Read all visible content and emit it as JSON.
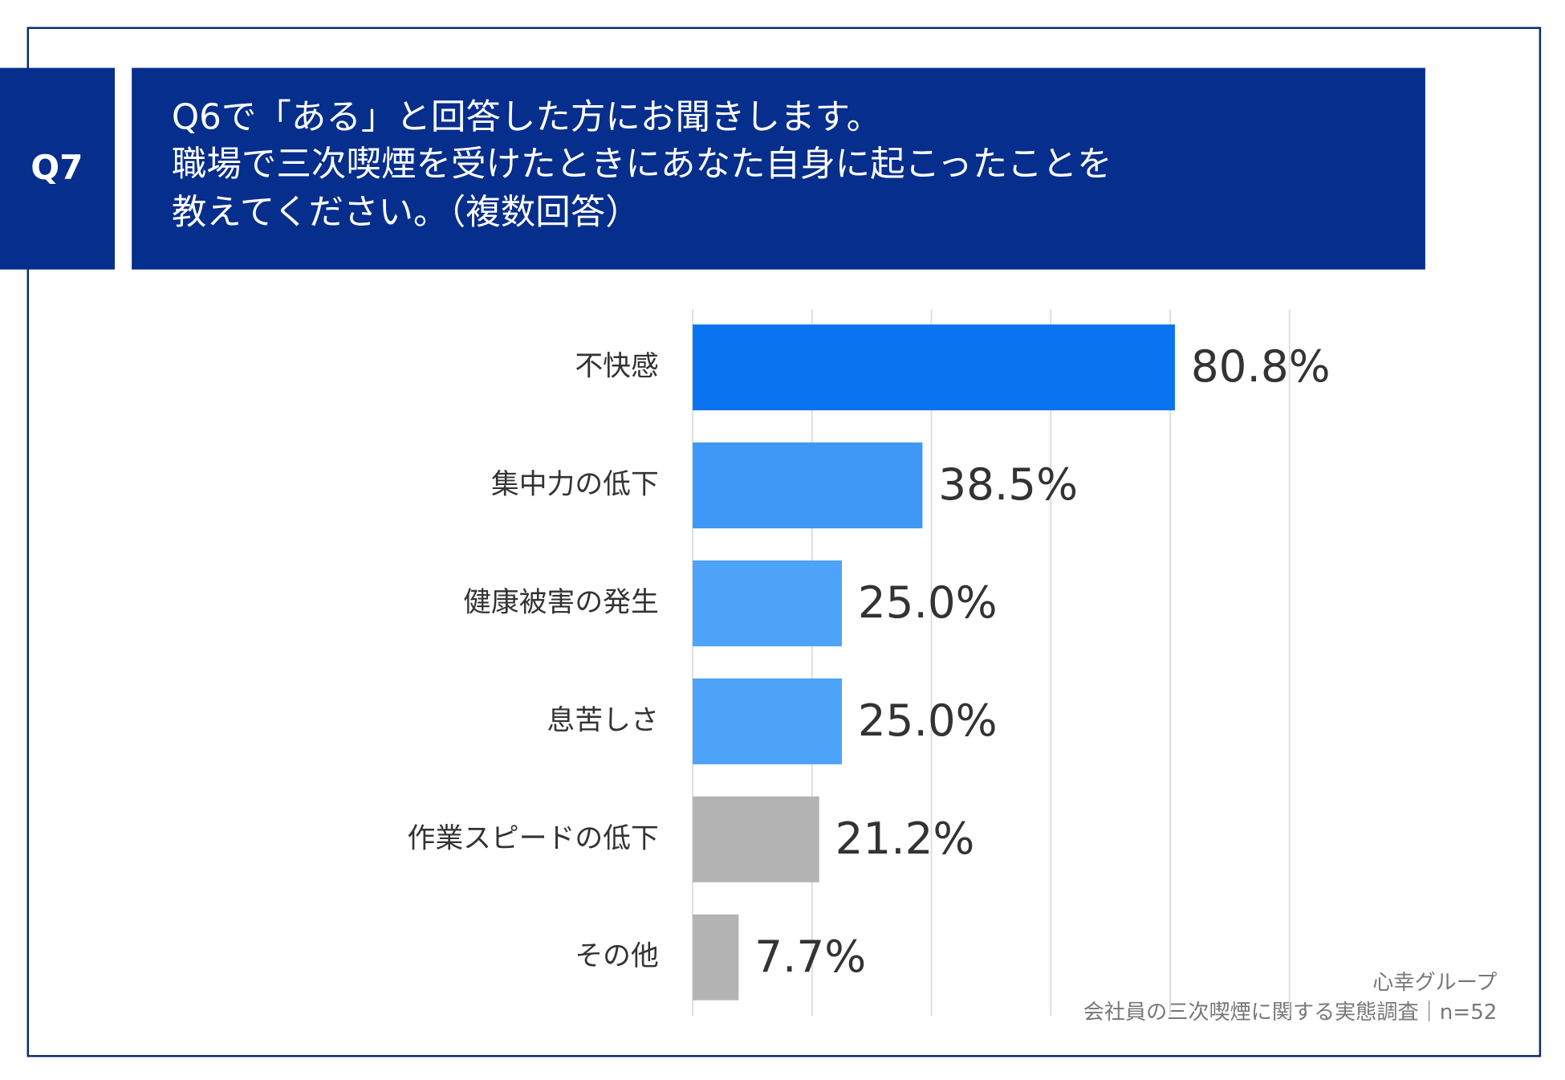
{
  "chart_data": {
    "type": "bar",
    "orientation": "horizontal",
    "question_label": "Q7",
    "title": [
      "Q6で「ある」と回答した方にお聞きします。",
      "職場で三次喫煙を受けたときにあなた自身に起こったことを",
      "教えてください。（複数回答）"
    ],
    "categories": [
      "不快感",
      "集中力の低下",
      "健康被害の発生",
      "息苦しさ",
      "作業スピードの低下",
      "その他"
    ],
    "values": [
      80.8,
      38.5,
      25.0,
      25.0,
      21.2,
      7.7
    ],
    "value_labels": [
      "80.8%",
      "38.5%",
      "25.0%",
      "25.0%",
      "21.2%",
      "7.7%"
    ],
    "colors": [
      "#0a74f0",
      "#3d99f5",
      "#4da3f7",
      "#4da3f7",
      "#b3b3b3",
      "#b3b3b3"
    ],
    "xlim": [
      0,
      100
    ],
    "xticks": [
      0,
      20,
      40,
      60,
      80,
      100
    ],
    "grid": true,
    "source": [
      "心幸グループ",
      "会社員の三次喫煙に関する実態調査｜n=52"
    ]
  }
}
